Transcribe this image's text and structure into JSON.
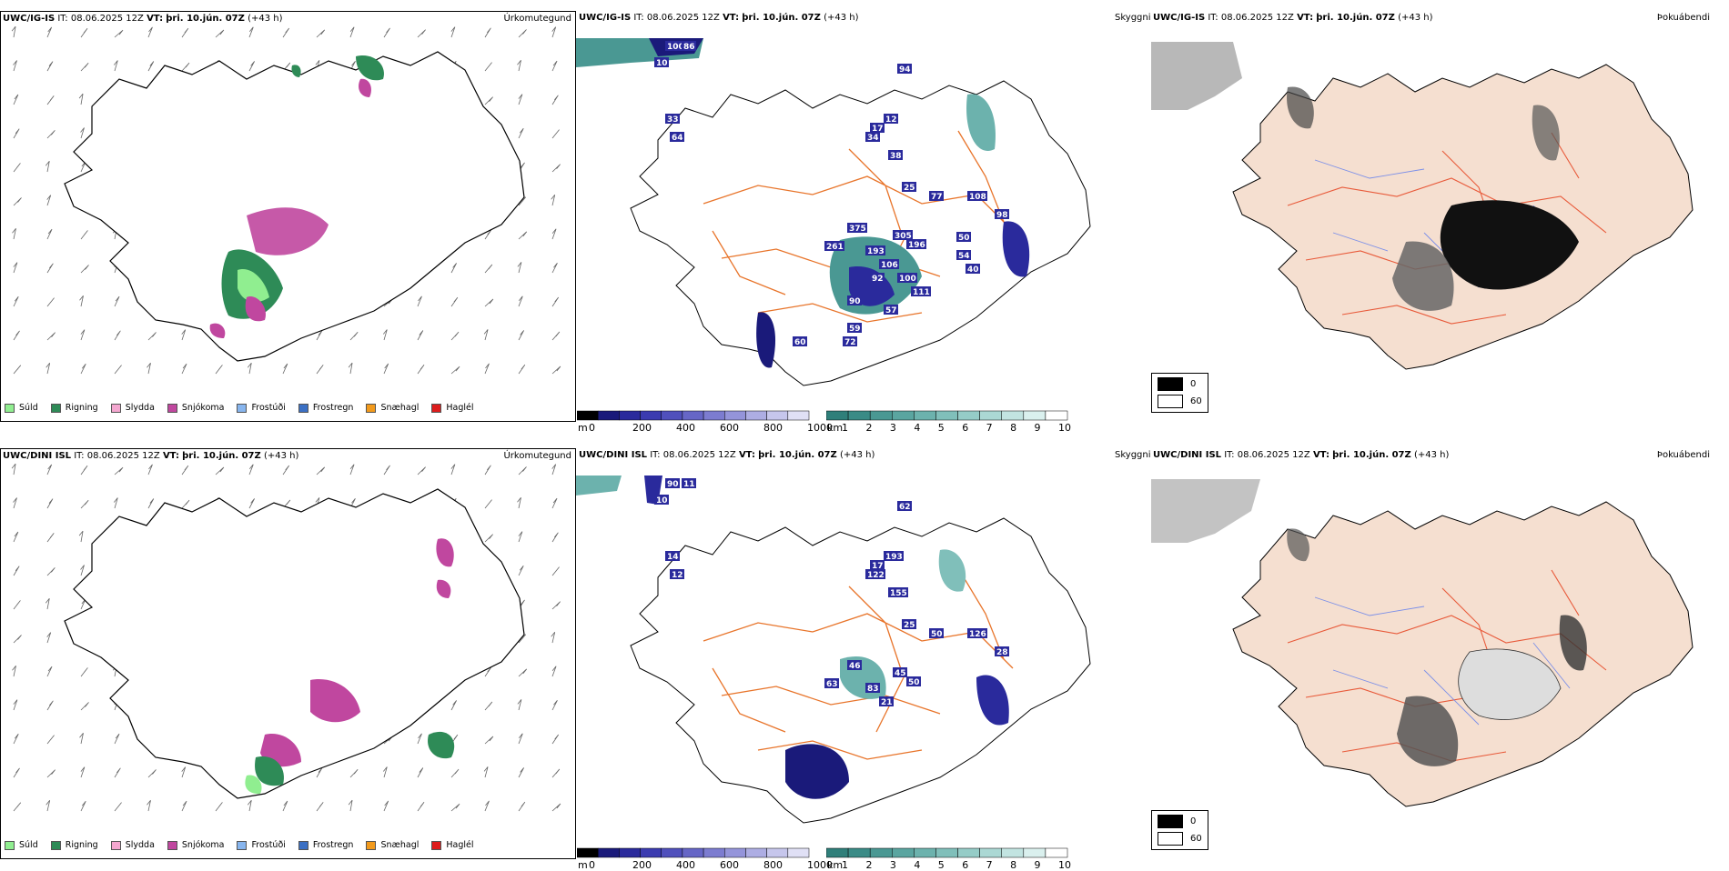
{
  "panels": [
    {
      "model": "UWC/IG-IS",
      "it_label": "IT:",
      "it_value": "08.06.2025 12Z",
      "vt_label": "VT:",
      "vt_value": "þri. 10.jún. 07Z",
      "lead": "(+43 h)",
      "precip_title": "Úrkomutegund",
      "cloud_title": "Skyggni",
      "fog_title": "Þokuábendi",
      "cloud_values": [
        "100",
        "86",
        "10",
        "33",
        "64",
        "94",
        "17",
        "12",
        "34",
        "38",
        "25",
        "77",
        "108",
        "98",
        "305",
        "196",
        "375",
        "261",
        "193",
        "106",
        "92",
        "100",
        "111",
        "90",
        "57",
        "59",
        "72",
        "60",
        "54",
        "50",
        "40"
      ]
    },
    {
      "model": "UWC/DINI ISL",
      "it_label": "IT:",
      "it_value": "08.06.2025 12Z",
      "vt_label": "VT:",
      "vt_value": "þri. 10.jún. 07Z",
      "lead": "(+43 h)",
      "precip_title": "Úrkomutegund",
      "cloud_title": "Skyggni",
      "fog_title": "Þokuábendi",
      "cloud_values": [
        "90",
        "11",
        "10",
        "14",
        "12",
        "62",
        "17",
        "193",
        "122",
        "155",
        "25",
        "50",
        "126",
        "28",
        "45",
        "50",
        "46",
        "63",
        "83",
        "21"
      ]
    }
  ],
  "precip_legend": [
    {
      "label": "Súld",
      "color": "#90ee90"
    },
    {
      "label": "Rigning",
      "color": "#2e8b57"
    },
    {
      "label": "Slydda",
      "color": "#f4a7d0"
    },
    {
      "label": "Snjókoma",
      "color": "#c0479f"
    },
    {
      "label": "Frostúði",
      "color": "#87b5ee"
    },
    {
      "label": "Frostregn",
      "color": "#3b70c4"
    },
    {
      "label": "Snæhagl",
      "color": "#f29a1c"
    },
    {
      "label": "Haglél",
      "color": "#dd1c1c"
    }
  ],
  "height_bar": {
    "unit": "m",
    "ticks": [
      "0",
      "200",
      "400",
      "600",
      "800",
      "1000"
    ],
    "colors": [
      "#000000",
      "#1a1a7a",
      "#2a2a9c",
      "#3b3bb0",
      "#5050bc",
      "#6666c6",
      "#7c7cd0",
      "#9494da",
      "#adade3",
      "#c6c6ec",
      "#e0e0f5"
    ]
  },
  "cloud_bar": {
    "unit": "km",
    "ticks": [
      "1",
      "2",
      "3",
      "4",
      "5",
      "6",
      "7",
      "8",
      "9",
      "10"
    ],
    "colors": [
      "#2f7f7a",
      "#3a8b86",
      "#4a9893",
      "#5aa5a0",
      "#6cb2ad",
      "#80bfba",
      "#95ccc7",
      "#abd8d4",
      "#c2e4e1",
      "#daf0ee",
      "#ffffff"
    ]
  },
  "fog_legend": [
    {
      "label": "0",
      "color": "#000000"
    },
    {
      "label": "60",
      "color": "#ffffff"
    }
  ],
  "colors": {
    "iceland_fill": "#f5dfd0",
    "roads": "#e8742a",
    "rivers": "#7b8fe8",
    "coast": "#000000",
    "fog_roads": "#e85a3a"
  }
}
